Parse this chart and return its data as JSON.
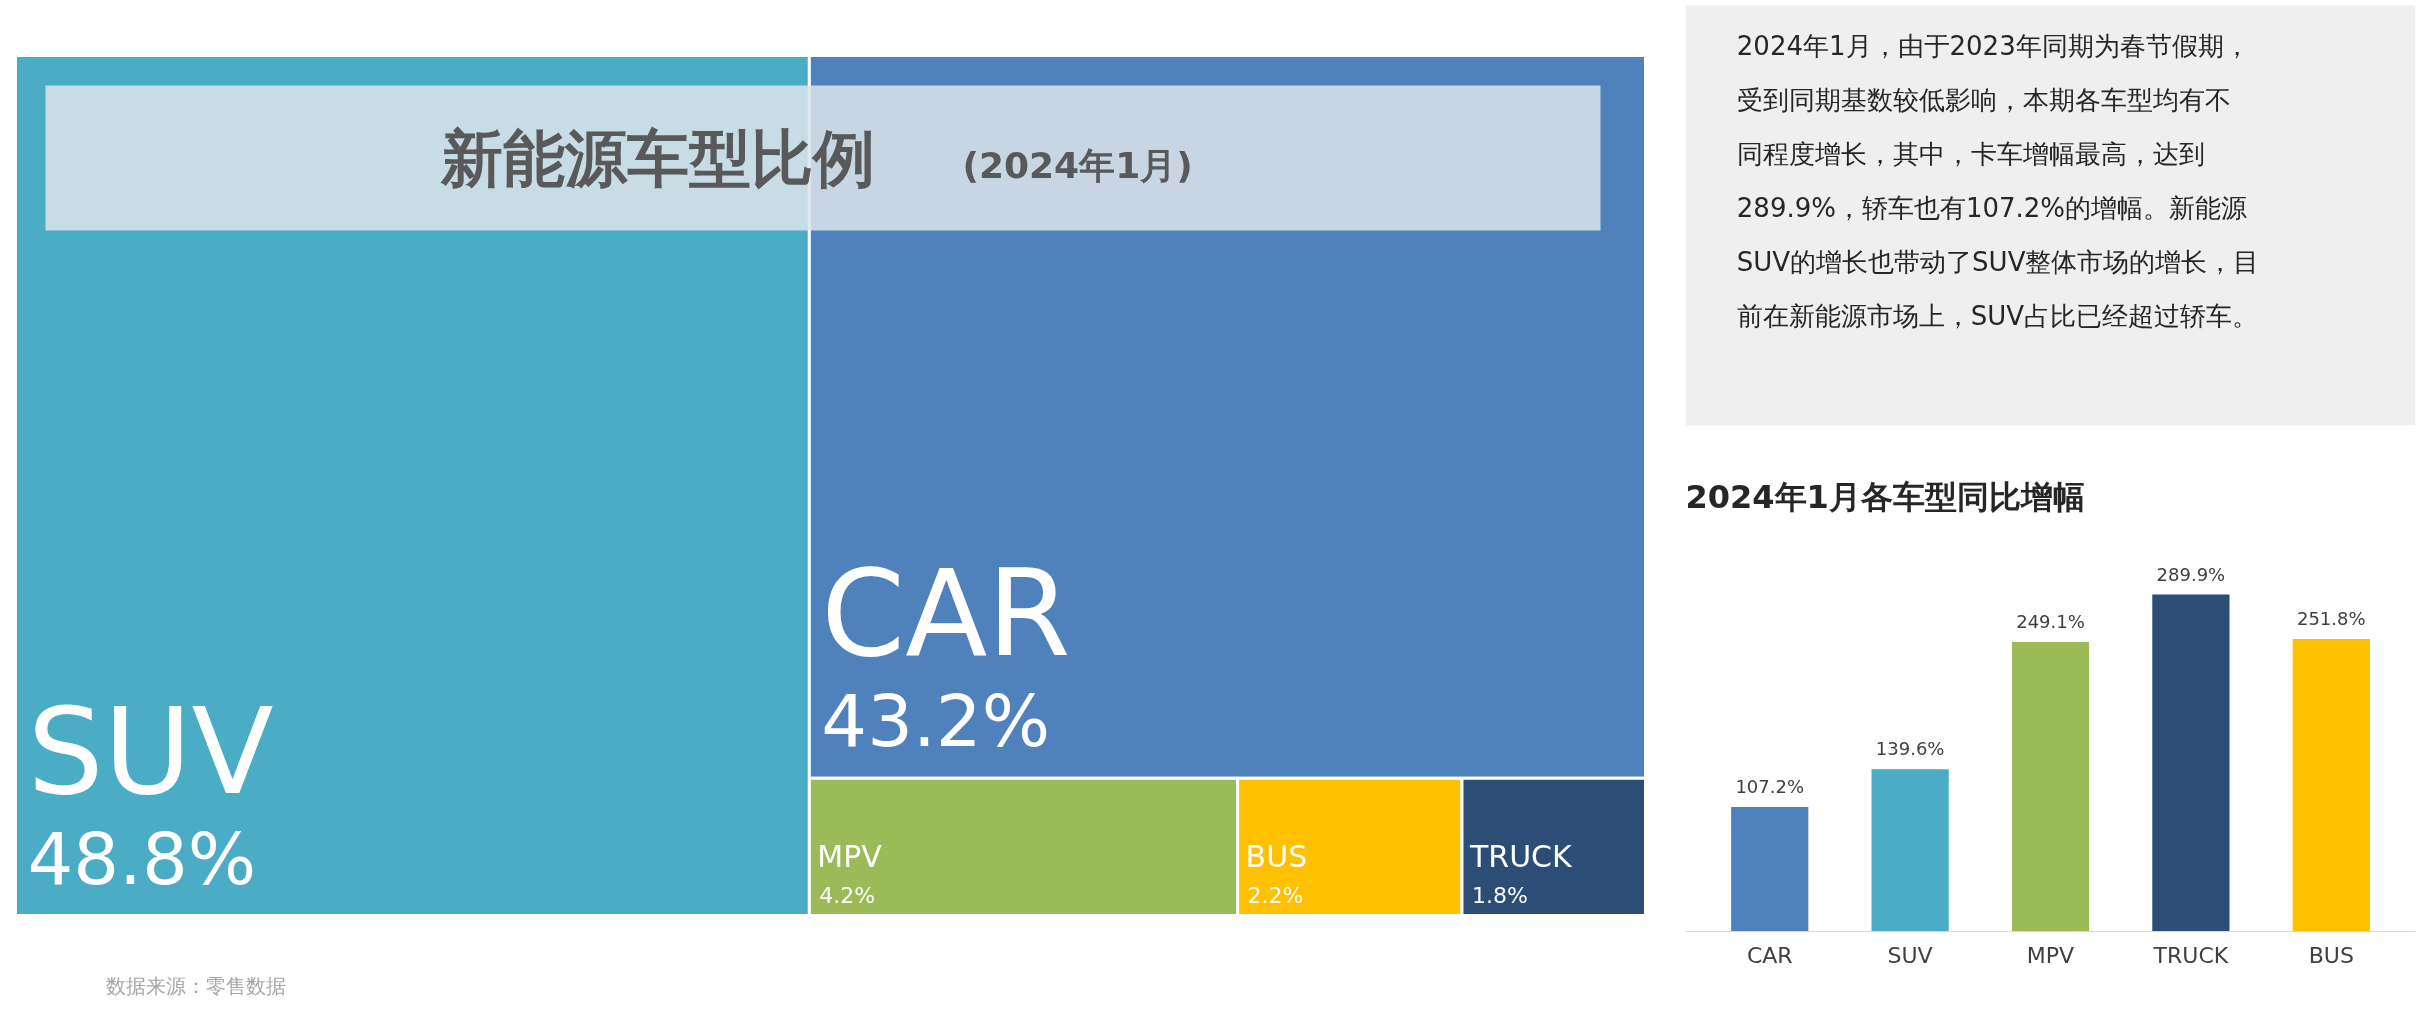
{
  "chart_data": [
    {
      "type": "other",
      "title": "新能源车型比例",
      "subtitle": "(2024年1月)",
      "categories": [
        "SUV",
        "CAR",
        "MPV",
        "BUS",
        "TRUCK"
      ],
      "values": [
        48.8,
        43.2,
        4.2,
        2.2,
        1.8
      ],
      "value_labels": [
        "48.8%",
        "43.2%",
        "4.2%",
        "2.2%",
        "1.8%"
      ],
      "colors": [
        "#4bacc6",
        "#4f81bd",
        "#9bbb59",
        "#ffc000",
        "#2c4d75"
      ],
      "annotations": [
        "数据来源：零售数据"
      ]
    },
    {
      "type": "other",
      "annotations": [
        "2024年1月，由于2023年同期为春节假期，受到同期基数较低影响，本期各车型均有不同程度增长，其中，卡车增幅最高，达到289.9%，轿车也有107.2%的增幅。新能源SUV的增长也带动了SUV整体市场的增长，目前在新能源市场上，SUV占比已经超过轿车。"
      ]
    },
    {
      "type": "bar",
      "title": "2024年1月各车型同比增幅",
      "categories": [
        "CAR",
        "SUV",
        "MPV",
        "TRUCK",
        "BUS"
      ],
      "values": [
        107.2,
        139.6,
        249.1,
        289.9,
        251.8
      ],
      "value_labels": [
        "107.2%",
        "139.6%",
        "249.1%",
        "289.9%",
        "251.8%"
      ],
      "colors": [
        "#4f81bd",
        "#4bacc6",
        "#9bbb59",
        "#2c4d75",
        "#ffc000"
      ],
      "tick_labels": "x"
    }
  ]
}
